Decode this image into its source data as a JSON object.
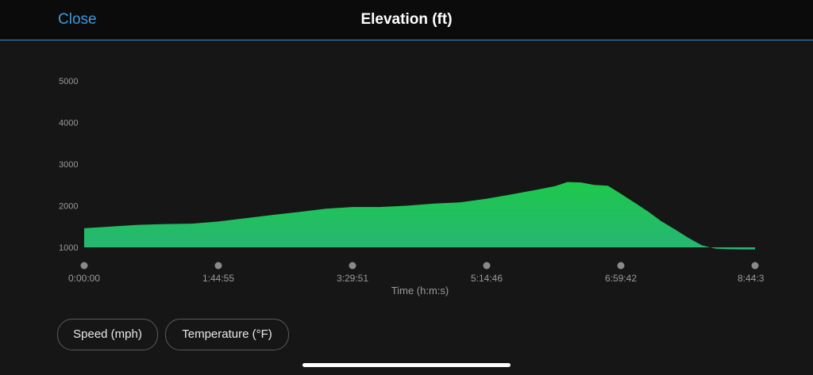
{
  "header": {
    "close_label": "Close",
    "title": "Elevation (ft)"
  },
  "chart_data": {
    "type": "area",
    "title": "Elevation (ft)",
    "xlabel": "Time (h:m:s)",
    "ylabel": "",
    "x_tick_labels": [
      "0:00:00",
      "1:44:55",
      "3:29:51",
      "5:14:46",
      "6:59:42",
      "8:44:3"
    ],
    "y_tick_labels": [
      "1000",
      "2000",
      "3000",
      "4000",
      "5000"
    ],
    "x_unit": "seconds",
    "xlim": [
      0,
      31475
    ],
    "ylim": [
      900,
      5000
    ],
    "x": [
      0,
      1260,
      2520,
      3780,
      5040,
      6300,
      7570,
      8830,
      10080,
      11330,
      12590,
      13860,
      15110,
      16370,
      17630,
      18890,
      20140,
      21400,
      22100,
      22670,
      23300,
      23930,
      24570,
      25200,
      25830,
      26460,
      27070,
      27720,
      28340,
      28980,
      29620,
      30260,
      30870,
      31475
    ],
    "values": [
      1460,
      1500,
      1540,
      1560,
      1570,
      1620,
      1700,
      1780,
      1850,
      1930,
      1970,
      1970,
      2000,
      2050,
      2080,
      2170,
      2280,
      2400,
      2470,
      2570,
      2560,
      2500,
      2480,
      2280,
      2070,
      1860,
      1630,
      1430,
      1230,
      1050,
      970,
      955,
      950,
      950
    ],
    "legend": "none",
    "grid": false,
    "colors": {
      "fill_top": "#1ec84c",
      "fill_bottom": "#26b673",
      "text": "#9a9a9a",
      "marker": "#8a8a8a"
    }
  },
  "chips": {
    "speed_label": "Speed (mph)",
    "temperature_label": "Temperature (°F)"
  }
}
